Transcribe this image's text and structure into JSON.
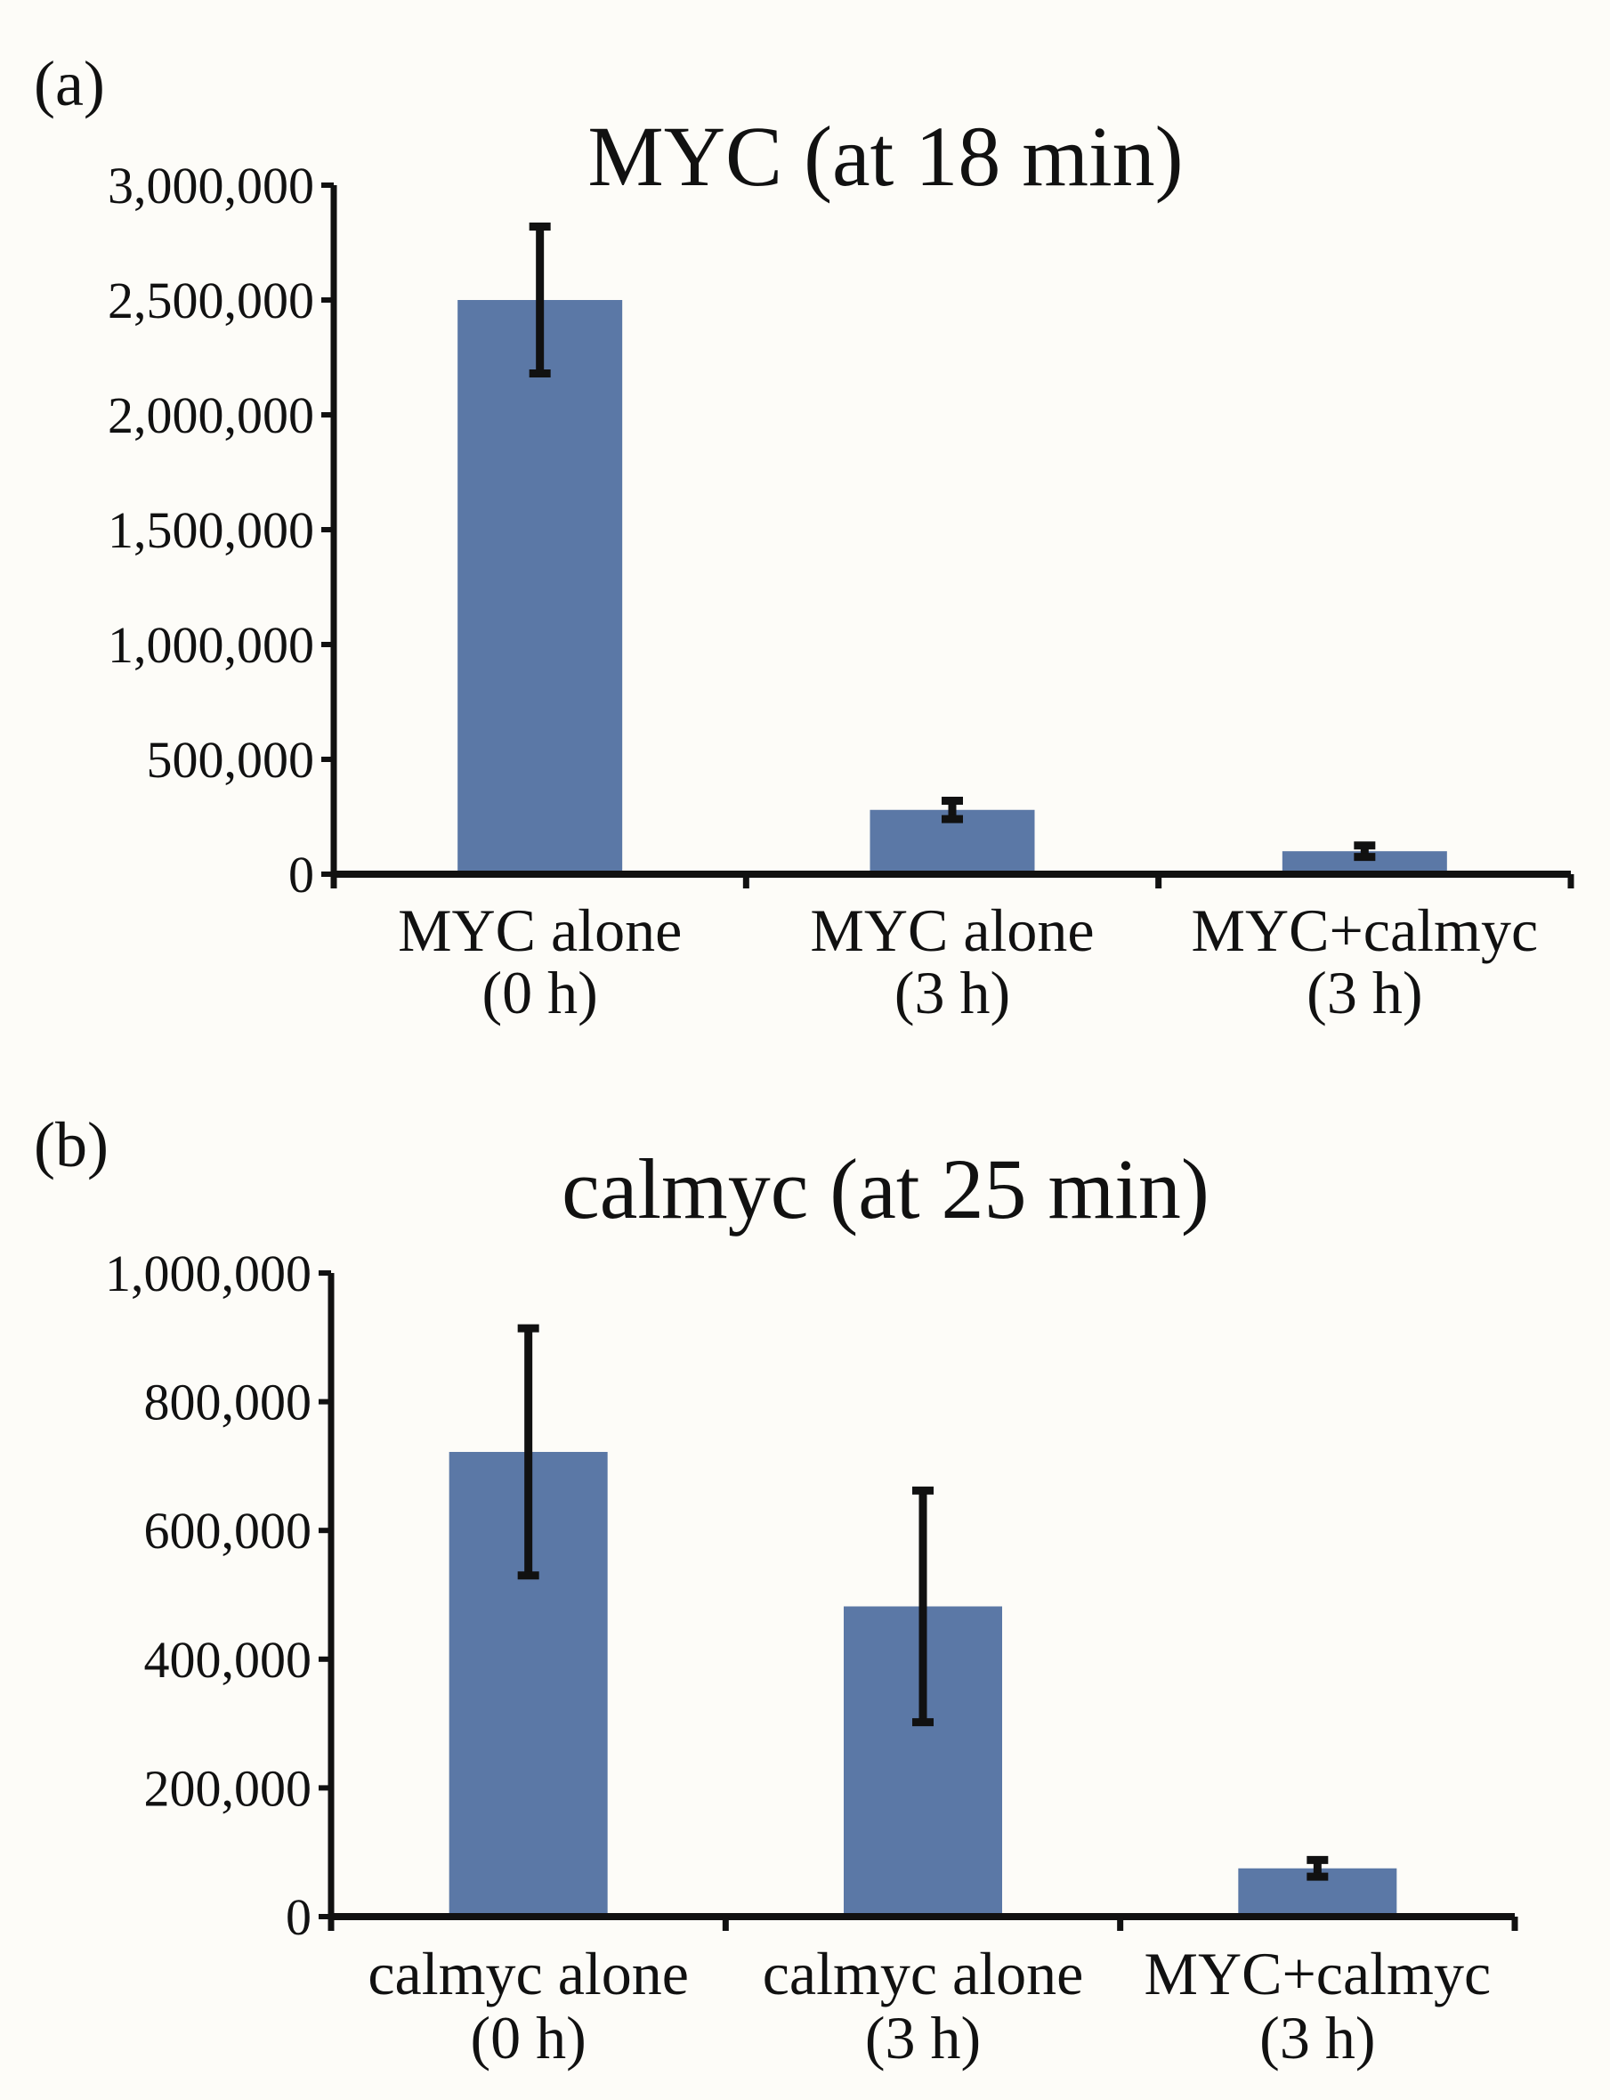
{
  "colors": {
    "bar": "#5b78a6",
    "axis": "#111111",
    "error_bar": "#111111",
    "background": "#fdfcf8"
  },
  "chart_data": [
    {
      "type": "bar",
      "panel_label": "(a)",
      "title": "MYC (at 18 min)",
      "xlabel": "",
      "ylabel": "",
      "ylim": [
        0,
        3000000
      ],
      "yticks": [
        "0",
        "500,000",
        "1,000,000",
        "1,500,000",
        "2,000,000",
        "2,500,000",
        "3,000,000"
      ],
      "categories": [
        {
          "line1": "MYC alone",
          "line2": "(0 h)"
        },
        {
          "line1": "MYC alone",
          "line2": "(3 h)"
        },
        {
          "line1": "MYC+calmyc",
          "line2": "(3 h)"
        }
      ],
      "values": [
        2500000,
        280000,
        100000
      ],
      "errors": [
        320000,
        40000,
        25000
      ],
      "grid": false,
      "legend": "none"
    },
    {
      "type": "bar",
      "panel_label": "(b)",
      "title": "calmyc (at 25 min)",
      "xlabel": "",
      "ylabel": "",
      "ylim": [
        0,
        1000000
      ],
      "yticks": [
        "0",
        "200,000",
        "400,000",
        "600,000",
        "800,000",
        "1,000,000"
      ],
      "categories": [
        {
          "line1": "calmyc alone",
          "line2": "(0 h)"
        },
        {
          "line1": "calmyc alone",
          "line2": "(3 h)"
        },
        {
          "line1": "MYC+calmyc",
          "line2": "(3 h)"
        }
      ],
      "values": [
        722000,
        482000,
        75000
      ],
      "errors": [
        192000,
        180000,
        13000
      ],
      "grid": false,
      "legend": "none"
    }
  ]
}
